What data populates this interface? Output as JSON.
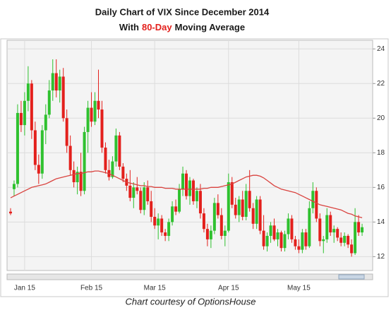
{
  "chart_data": {
    "type": "candlestick",
    "title": "Daily Chart of VIX Since December 2014",
    "subtitle_parts": [
      "With",
      "80-Day",
      "Moving Average"
    ],
    "caption": "Chart courtesy of OptionsHouse",
    "up_color": "#2fc12f",
    "down_color": "#e3201c",
    "ma_color": "#d9433f",
    "grid": true,
    "ylim": [
      11.2,
      24.5
    ],
    "yticks": [
      12,
      14,
      16,
      18,
      20,
      22,
      24
    ],
    "xlim": [
      -1,
      103
    ],
    "xticks": [
      {
        "value": 4,
        "label": "Jan 15"
      },
      {
        "value": 23,
        "label": "Feb 15"
      },
      {
        "value": 41,
        "label": "Mar 15"
      },
      {
        "value": 62,
        "label": "Apr 15"
      },
      {
        "value": 82,
        "label": "May 15"
      }
    ],
    "open": [
      14.6,
      15.9,
      16.2,
      20.3,
      19.6,
      21.0,
      22.0,
      19.3,
      17.3,
      16.8,
      19.3,
      20.2,
      21.6,
      22.6,
      21.6,
      22.4,
      20.0,
      18.4,
      17.0,
      16.3,
      16.9,
      15.8,
      19.2,
      20.6,
      19.8,
      21.0,
      20.5,
      18.3,
      17.0,
      16.6,
      17.5,
      19.0,
      17.2,
      16.5,
      16.1,
      15.4,
      16.0,
      15.8,
      14.7,
      16.0,
      15.2,
      14.3,
      13.8,
      14.2,
      13.4,
      13.2,
      14.0,
      14.9,
      14.6,
      15.9,
      16.8,
      15.5,
      16.4,
      15.2,
      15.8,
      14.5,
      13.6,
      13.0,
      13.5,
      15.1,
      14.4,
      13.2,
      13.5,
      16.3,
      15.0,
      14.4,
      15.3,
      14.3,
      15.8,
      14.8,
      13.9,
      15.3,
      13.5,
      12.6,
      13.2,
      13.8,
      13.0,
      13.4,
      12.5,
      13.3,
      14.2,
      13.0,
      12.6,
      12.4,
      13.4,
      12.6,
      14.8,
      15.8,
      14.2,
      12.9,
      13.0,
      14.4,
      13.4,
      13.6,
      13.1,
      12.8,
      13.2,
      12.7,
      12.2,
      14.0,
      13.4
    ],
    "high": [
      14.8,
      16.4,
      20.8,
      21.0,
      21.5,
      23.0,
      22.2,
      19.8,
      17.9,
      19.6,
      20.8,
      22.2,
      23.4,
      23.4,
      22.8,
      22.9,
      20.5,
      19.0,
      17.5,
      17.2,
      18.0,
      19.5,
      21.0,
      21.5,
      21.5,
      22.8,
      21.0,
      18.6,
      17.6,
      17.8,
      19.4,
      19.2,
      17.4,
      16.8,
      17.0,
      16.3,
      16.6,
      16.0,
      16.3,
      16.4,
      15.8,
      14.8,
      14.5,
      14.4,
      13.6,
      14.2,
      15.2,
      15.3,
      16.2,
      17.2,
      17.0,
      16.6,
      16.5,
      16.0,
      16.2,
      14.8,
      13.9,
      13.8,
      15.4,
      15.6,
      14.8,
      13.8,
      16.8,
      16.6,
      15.4,
      15.5,
      15.8,
      16.2,
      17.0,
      15.1,
      15.5,
      15.5,
      14.4,
      13.4,
      14.0,
      14.2,
      13.6,
      13.5,
      13.5,
      14.5,
      14.4,
      13.2,
      13.0,
      13.6,
      13.6,
      15.2,
      16.3,
      16.0,
      14.5,
      13.2,
      14.8,
      14.6,
      13.8,
      13.7,
      13.4,
      13.4,
      13.3,
      13.0,
      14.8,
      14.4,
      13.9
    ],
    "low": [
      14.4,
      15.5,
      16.0,
      19.2,
      19.0,
      20.4,
      18.8,
      17.0,
      16.2,
      16.5,
      18.5,
      20.0,
      21.0,
      21.2,
      20.9,
      19.8,
      18.0,
      16.7,
      16.0,
      15.6,
      15.5,
      15.6,
      18.0,
      19.5,
      19.6,
      20.0,
      18.0,
      16.8,
      16.4,
      16.5,
      17.2,
      17.0,
      16.3,
      15.8,
      15.2,
      14.8,
      15.6,
      14.5,
      14.4,
      15.0,
      14.0,
      13.6,
      13.0,
      13.2,
      12.9,
      12.9,
      13.8,
      14.4,
      14.5,
      15.5,
      15.3,
      15.0,
      15.0,
      14.8,
      14.2,
      13.4,
      12.6,
      12.5,
      13.3,
      14.2,
      13.0,
      12.6,
      13.4,
      14.8,
      14.2,
      14.0,
      14.1,
      14.1,
      14.6,
      13.6,
      13.6,
      13.3,
      12.4,
      12.3,
      12.8,
      12.9,
      12.6,
      12.3,
      12.3,
      13.0,
      12.8,
      12.4,
      12.2,
      12.2,
      12.4,
      12.5,
      14.5,
      14.0,
      12.6,
      12.2,
      12.8,
      13.2,
      12.8,
      12.9,
      12.6,
      12.6,
      12.5,
      12.0,
      12.1,
      13.2,
      13.2
    ],
    "close": [
      14.5,
      16.2,
      20.3,
      19.6,
      21.0,
      22.0,
      19.3,
      17.3,
      16.8,
      19.3,
      20.2,
      21.6,
      22.6,
      21.6,
      22.4,
      20.0,
      18.4,
      17.0,
      16.3,
      16.9,
      15.8,
      19.2,
      20.6,
      19.8,
      21.0,
      20.5,
      18.3,
      17.0,
      16.6,
      17.5,
      19.0,
      17.2,
      16.5,
      16.1,
      15.4,
      16.0,
      15.8,
      14.7,
      16.0,
      15.2,
      14.3,
      13.8,
      14.2,
      13.4,
      13.2,
      14.0,
      14.9,
      14.6,
      15.9,
      16.8,
      15.5,
      16.4,
      15.2,
      15.8,
      14.5,
      13.6,
      13.0,
      13.5,
      15.1,
      14.4,
      13.2,
      13.5,
      16.3,
      15.0,
      14.4,
      15.3,
      14.3,
      15.8,
      14.8,
      13.9,
      15.3,
      13.5,
      12.6,
      13.2,
      13.8,
      13.0,
      13.4,
      12.5,
      13.3,
      14.2,
      13.0,
      12.6,
      12.4,
      13.4,
      12.6,
      14.8,
      15.8,
      14.2,
      12.9,
      13.0,
      14.4,
      13.4,
      13.6,
      13.1,
      12.8,
      13.2,
      12.7,
      12.2,
      14.0,
      13.4,
      13.7
    ],
    "moving_average": [
      15.4,
      15.5,
      15.6,
      15.7,
      15.8,
      15.9,
      16.0,
      16.05,
      16.1,
      16.15,
      16.2,
      16.3,
      16.4,
      16.5,
      16.55,
      16.6,
      16.65,
      16.7,
      16.75,
      16.8,
      16.8,
      16.85,
      16.9,
      16.9,
      16.95,
      16.95,
      16.9,
      16.85,
      16.8,
      16.7,
      16.6,
      16.5,
      16.4,
      16.3,
      16.25,
      16.2,
      16.15,
      16.1,
      16.1,
      16.05,
      16.05,
      16.0,
      16.0,
      16.0,
      15.95,
      15.95,
      15.95,
      15.9,
      15.9,
      15.9,
      15.9,
      15.9,
      15.9,
      15.9,
      15.9,
      15.95,
      15.95,
      16.0,
      16.0,
      16.0,
      16.05,
      16.1,
      16.15,
      16.2,
      16.3,
      16.4,
      16.5,
      16.6,
      16.65,
      16.7,
      16.7,
      16.65,
      16.55,
      16.4,
      16.25,
      16.1,
      16.0,
      15.9,
      15.85,
      15.8,
      15.75,
      15.7,
      15.6,
      15.5,
      15.4,
      15.3,
      15.2,
      15.1,
      15.0,
      14.95,
      14.9,
      14.85,
      14.8,
      14.75,
      14.7,
      14.6,
      14.5,
      14.45,
      14.35,
      14.3,
      14.25
    ]
  }
}
